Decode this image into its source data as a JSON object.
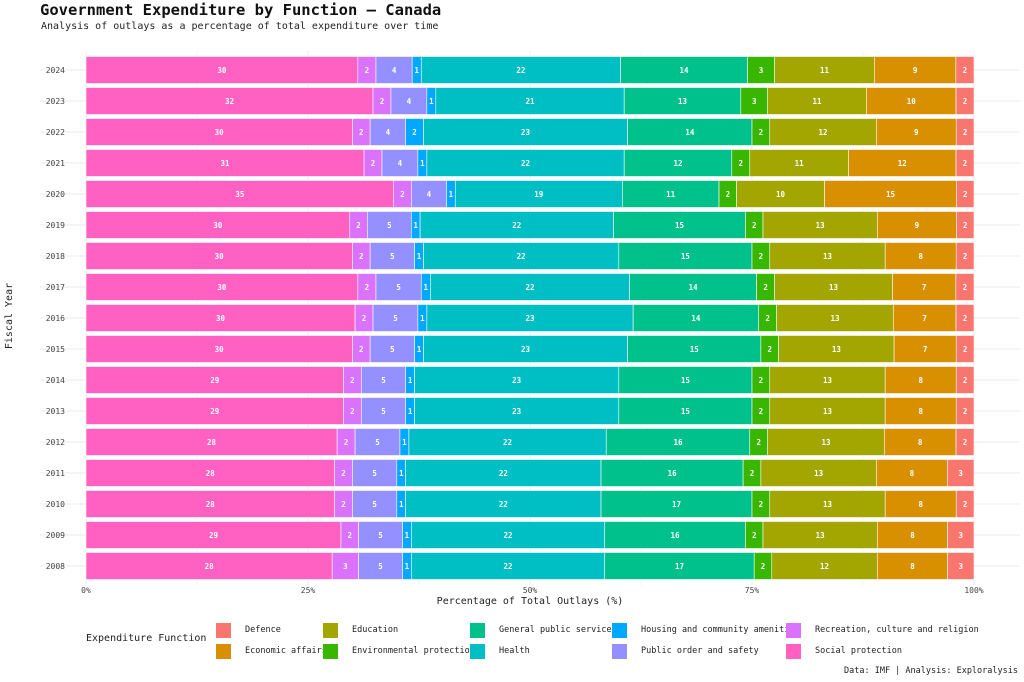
{
  "title": "Government Expenditure by Function — Canada",
  "subtitle": "Analysis of outlays as a percentage of total expenditure over time",
  "caption": "Data: IMF | Analysis: Exploralysis",
  "legend_title": "Expenditure Function",
  "chart_data": {
    "type": "bar",
    "orientation": "horizontal",
    "stacked": "percent",
    "title": "Government Expenditure by Function — Canada",
    "subtitle": "Analysis of outlays as a percentage of total expenditure over time",
    "xlabel": "Percentage of Total Outlays (%)",
    "ylabel": "Fiscal Year",
    "xlim": [
      0,
      100
    ],
    "x_ticks": [
      "0%",
      "25%",
      "50%",
      "75%",
      "100%"
    ],
    "grid": true,
    "legend_position": "bottom",
    "categories": [
      "2024",
      "2023",
      "2022",
      "2021",
      "2020",
      "2019",
      "2018",
      "2017",
      "2016",
      "2015",
      "2014",
      "2013",
      "2012",
      "2011",
      "2010",
      "2009",
      "2008"
    ],
    "series": [
      {
        "name": "Social protection",
        "color": "#FF61C3",
        "values": [
          30,
          32,
          30,
          31,
          35,
          30,
          30,
          30,
          30,
          30,
          29,
          29,
          28,
          28,
          28,
          29,
          28
        ]
      },
      {
        "name": "Recreation, culture and religion",
        "color": "#DB72FB",
        "values": [
          2,
          2,
          2,
          2,
          2,
          2,
          2,
          2,
          2,
          2,
          2,
          2,
          2,
          2,
          2,
          2,
          3
        ]
      },
      {
        "name": "Public order and safety",
        "color": "#9590FF",
        "values": [
          4,
          4,
          4,
          4,
          4,
          5,
          5,
          5,
          5,
          5,
          5,
          5,
          5,
          5,
          5,
          5,
          5
        ]
      },
      {
        "name": "Housing and community amenities",
        "color": "#00A9FF",
        "values": [
          1,
          1,
          2,
          1,
          1,
          1,
          1,
          1,
          1,
          1,
          1,
          1,
          1,
          1,
          1,
          1,
          1
        ]
      },
      {
        "name": "Health",
        "color": "#00BFC4",
        "values": [
          22,
          21,
          23,
          22,
          19,
          22,
          22,
          22,
          23,
          23,
          23,
          23,
          22,
          22,
          22,
          22,
          22
        ]
      },
      {
        "name": "General public services",
        "color": "#00C08B",
        "values": [
          14,
          13,
          14,
          12,
          11,
          15,
          15,
          14,
          14,
          15,
          15,
          15,
          16,
          16,
          17,
          16,
          17
        ]
      },
      {
        "name": "Environmental protection",
        "color": "#39B600",
        "values": [
          3,
          3,
          2,
          2,
          2,
          2,
          2,
          2,
          2,
          2,
          2,
          2,
          2,
          2,
          2,
          2,
          2
        ]
      },
      {
        "name": "Education",
        "color": "#A3A500",
        "values": [
          11,
          11,
          12,
          11,
          10,
          13,
          13,
          13,
          13,
          13,
          13,
          13,
          13,
          13,
          13,
          13,
          12
        ]
      },
      {
        "name": "Economic affairs",
        "color": "#D89000",
        "values": [
          9,
          10,
          9,
          12,
          15,
          9,
          8,
          7,
          7,
          7,
          8,
          8,
          8,
          8,
          8,
          8,
          8
        ]
      },
      {
        "name": "Defence",
        "color": "#F8766D",
        "values": [
          2,
          2,
          2,
          2,
          2,
          2,
          2,
          2,
          2,
          2,
          2,
          2,
          2,
          3,
          2,
          3,
          3
        ]
      }
    ],
    "legend": [
      {
        "name": "Defence",
        "color": "#F8766D"
      },
      {
        "name": "Economic affairs",
        "color": "#D89000"
      },
      {
        "name": "Education",
        "color": "#A3A500"
      },
      {
        "name": "Environmental protection",
        "color": "#39B600"
      },
      {
        "name": "General public services",
        "color": "#00C08B"
      },
      {
        "name": "Health",
        "color": "#00BFC4"
      },
      {
        "name": "Housing and community amenities",
        "color": "#00A9FF"
      },
      {
        "name": "Public order and safety",
        "color": "#9590FF"
      },
      {
        "name": "Recreation, culture and religion",
        "color": "#DB72FB"
      },
      {
        "name": "Social protection",
        "color": "#FF61C3"
      }
    ]
  }
}
